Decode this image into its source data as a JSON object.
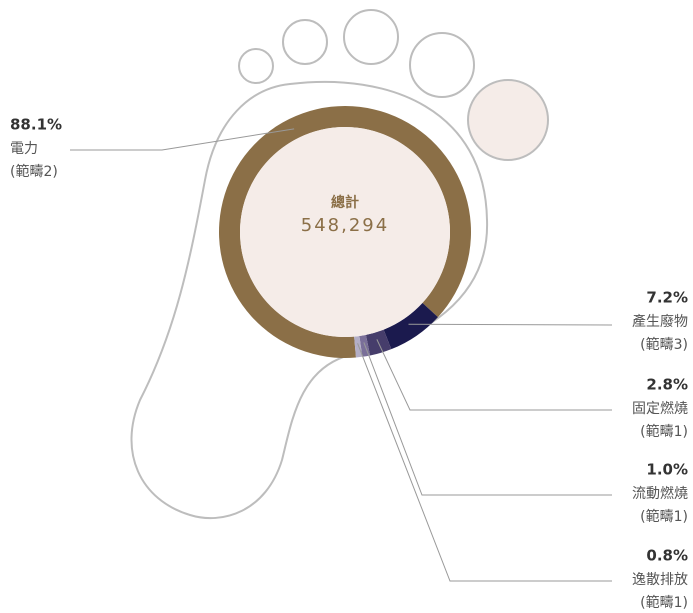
{
  "chart_data": {
    "type": "pie",
    "donut": true,
    "center_title": "總計",
    "center_value": "548,294",
    "categories": [
      "電力",
      "產生廢物",
      "固定燃燒",
      "流動燃燒",
      "逸散排放"
    ],
    "scopes": [
      "(範疇2)",
      "(範疇3)",
      "(範疇1)",
      "(範疇1)",
      "(範疇1)"
    ],
    "values": [
      88.1,
      7.2,
      2.8,
      1.0,
      0.8
    ],
    "value_labels": [
      "88.1%",
      "7.2%",
      "2.8%",
      "1.0%",
      "0.8%"
    ],
    "colors": [
      "#8b6f47",
      "#1b1a4e",
      "#463d6b",
      "#7a6f99",
      "#b3aec6"
    ]
  }
}
